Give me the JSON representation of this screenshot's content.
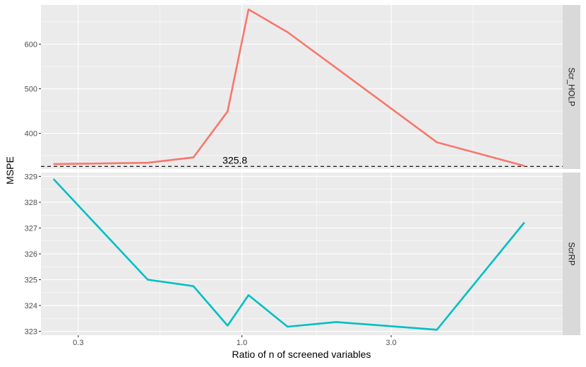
{
  "chart_data": {
    "type": "line",
    "xlabel": "Ratio of n of screened variables",
    "ylabel": "MSPE",
    "x_scale": "log10",
    "x_ticks": [
      0.3,
      1.0,
      3.0
    ],
    "x_tick_labels": [
      "0.3",
      "1.0",
      "3.0"
    ],
    "grid": true,
    "legend": "none",
    "panels": [
      {
        "strip": "Scr_HOLP",
        "color": "#F8766D",
        "ylim": [
          320,
          688
        ],
        "y_ticks": [
          400,
          500,
          600
        ],
        "y_tick_labels": [
          "400",
          "500",
          "600"
        ],
        "x": [
          0.25,
          0.5,
          0.7,
          0.9,
          1.05,
          1.4,
          2.0,
          4.2,
          8.0
        ],
        "values": [
          331,
          334,
          346,
          449,
          678,
          627,
          547,
          380,
          327
        ],
        "reference": {
          "y": 325.8,
          "label": "325.8",
          "label_x": 0.95
        }
      },
      {
        "strip": "ScrRP",
        "color": "#00BFC4",
        "ylim": [
          322.85,
          329.15
        ],
        "y_ticks": [
          323,
          324,
          325,
          326,
          327,
          328,
          329
        ],
        "y_tick_labels": [
          "323",
          "324",
          "325",
          "326",
          "327",
          "328",
          "329"
        ],
        "x": [
          0.25,
          0.5,
          0.7,
          0.9,
          1.05,
          1.4,
          2.0,
          4.2,
          8.0
        ],
        "values": [
          328.9,
          325.0,
          324.75,
          323.22,
          324.4,
          323.18,
          323.36,
          323.06,
          327.22
        ]
      }
    ]
  }
}
